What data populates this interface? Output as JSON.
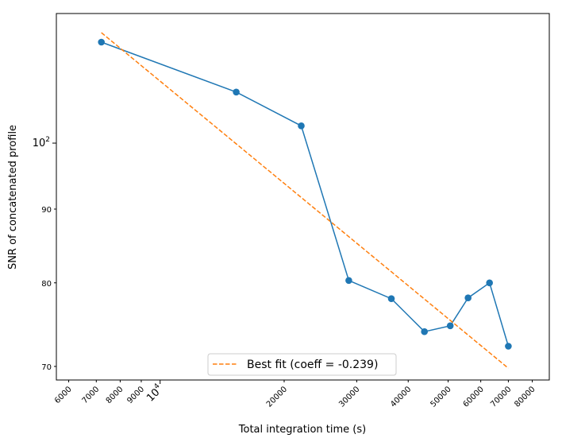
{
  "chart_data": {
    "type": "line",
    "xlabel": "Total integration time (s)",
    "ylabel": "SNR of concatenated profile",
    "x_scale": "log",
    "y_scale": "log",
    "xlim": [
      5600,
      88000
    ],
    "ylim": [
      68.5,
      123
    ],
    "x_ticks": [
      {
        "value": 6000,
        "label": "6000",
        "major": false
      },
      {
        "value": 7000,
        "label": "7000",
        "major": false
      },
      {
        "value": 8000,
        "label": "8000",
        "major": false
      },
      {
        "value": 9000,
        "label": "9000",
        "major": false
      },
      {
        "value": 10000,
        "label_base": "10",
        "label_exp": "4",
        "major": true
      },
      {
        "value": 20000,
        "label": "20000",
        "major": false
      },
      {
        "value": 30000,
        "label": "30000",
        "major": false
      },
      {
        "value": 40000,
        "label": "40000",
        "major": false
      },
      {
        "value": 50000,
        "label": "50000",
        "major": false
      },
      {
        "value": 60000,
        "label": "60000",
        "major": false
      },
      {
        "value": 70000,
        "label": "70000",
        "major": false
      },
      {
        "value": 80000,
        "label": "80000",
        "major": false
      }
    ],
    "y_ticks": [
      {
        "value": 70,
        "label": "70",
        "major": false
      },
      {
        "value": 80,
        "label": "80",
        "major": false
      },
      {
        "value": 90,
        "label": "90",
        "major": false
      },
      {
        "value": 100,
        "label_base": "10",
        "label_exp": "2",
        "major": true
      }
    ],
    "series": [
      {
        "color": "#1f77b4",
        "style": "solid",
        "marker": "circle",
        "points": [
          {
            "x": 7200,
            "y": 117.5
          },
          {
            "x": 15300,
            "y": 108.5
          },
          {
            "x": 22000,
            "y": 102.8
          },
          {
            "x": 28700,
            "y": 80.3
          },
          {
            "x": 36400,
            "y": 78.0
          },
          {
            "x": 43800,
            "y": 74.0
          },
          {
            "x": 50600,
            "y": 74.7
          },
          {
            "x": 55900,
            "y": 78.1
          },
          {
            "x": 63000,
            "y": 80.0
          },
          {
            "x": 70000,
            "y": 72.3
          }
        ]
      },
      {
        "name": "Best fit (coeff = -0.239)",
        "color": "#ff7f0e",
        "style": "dashed",
        "marker": "none",
        "points": [
          {
            "x": 7200,
            "y": 119.3
          },
          {
            "x": 70000,
            "y": 69.8
          }
        ]
      }
    ],
    "legend": {
      "position": "bottom-center"
    },
    "grid": false
  }
}
